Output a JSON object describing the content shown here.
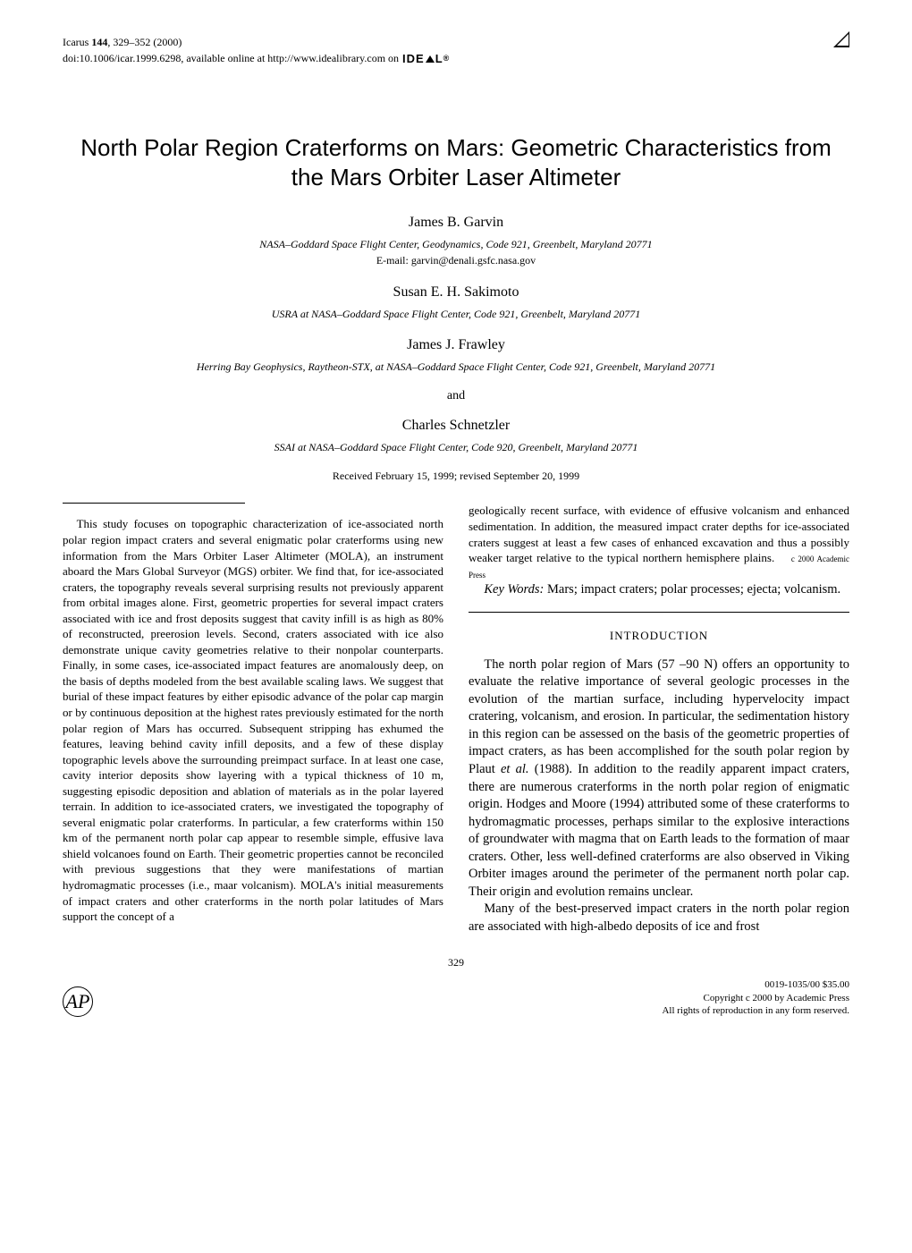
{
  "journal": {
    "header": "Icarus 144, 329–352 (2000)",
    "doi": "doi:10.1006/icar.1999.6298, available online at http://www.idealibrary.com on"
  },
  "title": "North Polar Region Craterforms on Mars: Geometric Characteristics from the Mars Orbiter Laser Altimeter",
  "authors": [
    {
      "name": "James B. Garvin",
      "affiliation": "NASA–Goddard Space Flight Center, Geodynamics, Code 921, Greenbelt, Maryland 20771",
      "email": "E-mail: garvin@denali.gsfc.nasa.gov"
    },
    {
      "name": "Susan E. H. Sakimoto",
      "affiliation": "USRA at NASA–Goddard Space Flight Center, Code 921, Greenbelt, Maryland 20771"
    },
    {
      "name": "James J. Frawley",
      "affiliation": "Herring Bay Geophysics, Raytheon-STX, at NASA–Goddard Space Flight Center, Code 921, Greenbelt, Maryland 20771"
    },
    {
      "name": "Charles Schnetzler",
      "affiliation": "SSAI at NASA–Goddard Space Flight Center, Code 920, Greenbelt, Maryland 20771"
    }
  ],
  "and_word": "and",
  "received": "Received February 15, 1999; revised September 20, 1999",
  "abstract": "This study focuses on topographic characterization of ice-associated north polar region impact craters and several enigmatic polar craterforms using new information from the Mars Orbiter Laser Altimeter (MOLA), an instrument aboard the Mars Global Surveyor (MGS) orbiter. We find that, for ice-associated craters, the topography reveals several surprising results not previously apparent from orbital images alone. First, geometric properties for several impact craters associated with ice and frost deposits suggest that cavity infill is as high as 80% of reconstructed, preerosion levels. Second, craters associated with ice also demonstrate unique cavity geometries relative to their nonpolar counterparts. Finally, in some cases, ice-associated impact features are anomalously deep, on the basis of depths modeled from the best available scaling laws. We suggest that burial of these impact features by either episodic advance of the polar cap margin or by continuous deposition at the highest rates previously estimated for the north polar region of Mars has occurred. Subsequent stripping has exhumed the features, leaving behind cavity infill deposits, and a few of these display topographic levels above the surrounding preimpact surface. In at least one case, cavity interior deposits show layering with a typical thickness of   10 m, suggesting episodic deposition and ablation of materials as in the polar layered terrain. In addition to ice-associated craters, we investigated the topography of several enigmatic polar craterforms. In particular, a few craterforms within   150 km of the permanent north polar cap appear to resemble simple, effusive lava shield volcanoes found on Earth. Their geometric properties cannot be reconciled with previous suggestions that they were manifestations of martian hydromagmatic processes (i.e., maar volcanism). MOLA's initial measurements of impact craters and other craterforms in the north polar latitudes of Mars support the concept of a",
  "abstract_cont": "geologically recent surface, with evidence of effusive volcanism and enhanced sedimentation. In addition, the measured impact crater depths for ice-associated craters suggest at least a few cases of enhanced excavation and thus a possibly weaker target relative to the typical northern hemisphere plains.",
  "copyright_inline": "c  2000 Academic Press",
  "keywords_label": "Key Words:",
  "keywords": "Mars; impact craters; polar processes; ejecta; volcanism.",
  "section_heading": "INTRODUCTION",
  "intro_p1": "The north polar region of Mars (57  –90  N) offers an opportunity to evaluate the relative importance of several geologic processes in the evolution of the martian surface, including hypervelocity impact cratering, volcanism, and erosion. In particular, the sedimentation history in this region can be assessed on the basis of the geometric properties of impact craters, as has been accomplished for the south polar region by Plaut et al. (1988). In addition to the readily apparent impact craters, there are numerous craterforms in the north polar region of enigmatic origin. Hodges and Moore (1994) attributed some of these craterforms to hydromagmatic processes, perhaps similar to the explosive interactions of groundwater with magma that on Earth leads to the formation of maar craters. Other, less well-defined craterforms are also observed in Viking Orbiter images around the perimeter of the permanent north polar cap. Their origin and evolution remains unclear.",
  "intro_p2": "Many of the best-preserved impact craters in the north polar region are associated with high-albedo deposits of ice and frost",
  "page_number": "329",
  "footer": {
    "issn": "0019-1035/00 $35.00",
    "copyright": "Copyright  c  2000 by Academic Press",
    "rights": "All rights of reproduction in any form reserved."
  }
}
